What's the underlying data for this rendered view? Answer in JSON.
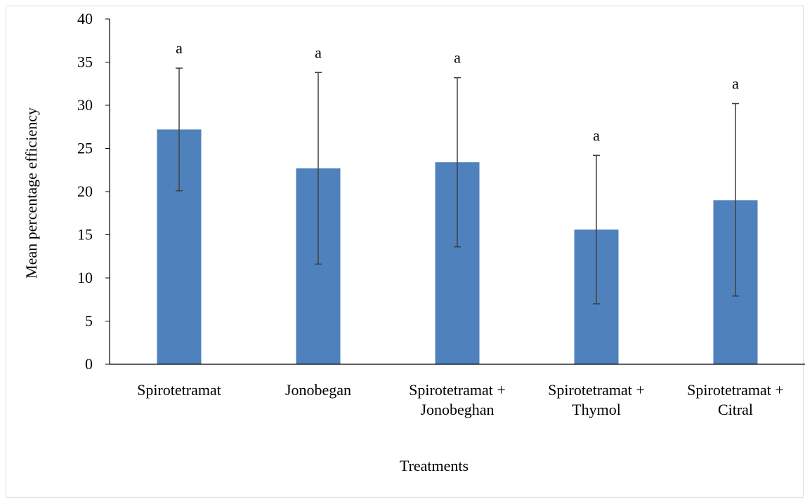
{
  "chart_data": {
    "type": "bar",
    "title": "",
    "xlabel": "Treatments",
    "ylabel": "Mean percentage efficiency",
    "ylim": [
      0,
      40
    ],
    "yticks": [
      0,
      5,
      10,
      15,
      20,
      25,
      30,
      35,
      40
    ],
    "grid": false,
    "legend": "none",
    "bar_color": "#4F81BD",
    "error_bar_color": "#404040",
    "categories": [
      [
        "Spirotetramat"
      ],
      [
        "Jonobegan"
      ],
      [
        "Spirotetramat +",
        "Jonobeghan"
      ],
      [
        "Spirotetramat +",
        "Thymol"
      ],
      [
        "Spirotetramat +",
        "Citral"
      ]
    ],
    "values": [
      27.2,
      22.7,
      23.4,
      15.6,
      19.0
    ],
    "error_low": [
      20.1,
      11.6,
      13.6,
      7.0,
      7.9
    ],
    "error_high": [
      34.3,
      33.8,
      33.2,
      24.2,
      30.2
    ],
    "group_labels": [
      "a",
      "a",
      "a",
      "a",
      "a"
    ]
  }
}
